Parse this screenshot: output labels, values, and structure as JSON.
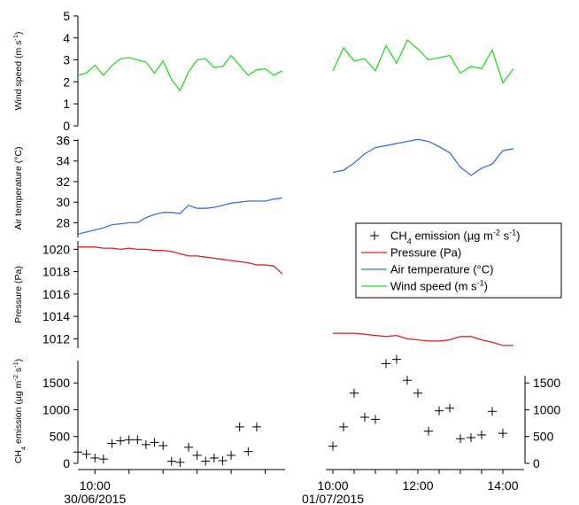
{
  "colors": {
    "wind": "#22dd22",
    "temperature": "#3a6fd8",
    "pressure": "#dd1f1f",
    "ch4": "#000000"
  },
  "chart_data": [
    {
      "type": "line",
      "panel": "wind",
      "ylabel": "Wind speed (m s-1)",
      "ylabel_parts": [
        "Wind speed (m s",
        "-1",
        ")"
      ],
      "ylim": [
        0,
        5
      ],
      "yticks": [
        0,
        1,
        2,
        3,
        4,
        5
      ],
      "series": [
        {
          "segment": "30/06/2015",
          "x": [
            "09:30",
            "09:45",
            "10:00",
            "10:15",
            "10:30",
            "10:45",
            "11:00",
            "11:15",
            "11:30",
            "11:45",
            "12:00",
            "12:15",
            "12:30",
            "12:45",
            "13:00",
            "13:15",
            "13:30",
            "13:45",
            "14:00",
            "14:15",
            "14:30",
            "14:45",
            "15:00",
            "15:15",
            "15:30"
          ],
          "values": [
            2.3,
            2.4,
            2.75,
            2.3,
            2.75,
            3.05,
            3.1,
            3.0,
            2.9,
            2.4,
            2.95,
            2.1,
            1.6,
            2.45,
            3.0,
            3.05,
            2.65,
            2.7,
            3.2,
            2.75,
            2.3,
            2.55,
            2.6,
            2.3,
            2.5
          ]
        },
        {
          "segment": "01/07/2015",
          "x": [
            "10:00",
            "10:15",
            "10:30",
            "10:45",
            "11:00",
            "11:15",
            "11:30",
            "11:45",
            "12:00",
            "12:15",
            "12:30",
            "12:45",
            "13:00",
            "13:15",
            "13:30",
            "13:45",
            "14:00",
            "14:15"
          ],
          "values": [
            2.5,
            3.55,
            2.95,
            3.05,
            2.5,
            3.65,
            2.85,
            3.9,
            3.5,
            3.0,
            3.1,
            3.2,
            2.4,
            2.7,
            2.6,
            3.45,
            1.95,
            2.6
          ]
        }
      ]
    },
    {
      "type": "line",
      "panel": "temperature",
      "ylabel": "Air temperature (°C)",
      "ylim": [
        26.4,
        36.3
      ],
      "yticks": [
        28,
        30,
        32,
        34,
        36
      ],
      "series": [
        {
          "segment": "30/06/2015",
          "x": [
            "09:30",
            "09:45",
            "10:00",
            "10:15",
            "10:30",
            "10:45",
            "11:00",
            "11:15",
            "11:30",
            "11:45",
            "12:00",
            "12:15",
            "12:30",
            "12:45",
            "13:00",
            "13:15",
            "13:30",
            "13:45",
            "14:00",
            "14:15",
            "14:30",
            "14:45",
            "15:00",
            "15:15",
            "15:30"
          ],
          "values": [
            26.9,
            27.1,
            27.3,
            27.5,
            27.8,
            27.9,
            28.0,
            28.0,
            28.5,
            28.8,
            29.0,
            29.0,
            28.9,
            29.7,
            29.4,
            29.4,
            29.5,
            29.7,
            29.9,
            30.0,
            30.1,
            30.1,
            30.1,
            30.3,
            30.4
          ]
        },
        {
          "segment": "01/07/2015",
          "x": [
            "10:00",
            "10:15",
            "10:30",
            "10:45",
            "11:00",
            "11:15",
            "11:30",
            "11:45",
            "12:00",
            "12:15",
            "12:30",
            "12:45",
            "13:00",
            "13:15",
            "13:30",
            "13:45",
            "14:00",
            "14:15"
          ],
          "values": [
            32.9,
            33.1,
            33.8,
            34.7,
            35.3,
            35.5,
            35.7,
            35.9,
            36.1,
            35.9,
            35.4,
            34.8,
            33.4,
            32.6,
            33.3,
            33.7,
            35.0,
            35.2
          ]
        }
      ]
    },
    {
      "type": "line",
      "panel": "pressure",
      "ylabel": "Pressure (Pa)",
      "ylim": [
        1011.0,
        1020.9
      ],
      "yticks": [
        1012,
        1014,
        1016,
        1018,
        1020
      ],
      "series": [
        {
          "segment": "30/06/2015",
          "x": [
            "09:30",
            "09:45",
            "10:00",
            "10:15",
            "10:30",
            "10:45",
            "11:00",
            "11:15",
            "11:30",
            "11:45",
            "12:00",
            "12:15",
            "12:30",
            "12:45",
            "13:00",
            "13:15",
            "13:30",
            "13:45",
            "14:00",
            "14:15",
            "14:30",
            "14:45",
            "15:00",
            "15:15",
            "15:30"
          ],
          "values": [
            1020.2,
            1020.2,
            1020.2,
            1020.1,
            1020.1,
            1020.0,
            1020.1,
            1020.0,
            1020.0,
            1019.9,
            1019.9,
            1019.8,
            1019.6,
            1019.4,
            1019.4,
            1019.3,
            1019.2,
            1019.1,
            1019.0,
            1018.9,
            1018.8,
            1018.6,
            1018.6,
            1018.5,
            1017.8
          ]
        },
        {
          "segment": "01/07/2015",
          "x": [
            "10:00",
            "10:15",
            "10:30",
            "10:45",
            "11:00",
            "11:15",
            "11:30",
            "11:45",
            "12:00",
            "12:15",
            "12:30",
            "12:45",
            "13:00",
            "13:15",
            "13:30",
            "13:45",
            "14:00",
            "14:15"
          ],
          "values": [
            1012.5,
            1012.5,
            1012.5,
            1012.4,
            1012.3,
            1012.2,
            1012.3,
            1012.0,
            1011.9,
            1011.8,
            1011.8,
            1011.9,
            1012.2,
            1012.2,
            1011.9,
            1011.7,
            1011.4,
            1011.4
          ]
        }
      ]
    },
    {
      "type": "scatter",
      "panel": "ch4",
      "ylabel": "CH4 emission (µg m-2 s-1)",
      "ylabel_parts": [
        "CH",
        "4",
        " emission (µg m",
        "-2",
        " s",
        "-1",
        ")"
      ],
      "ylim": [
        0,
        1950
      ],
      "yticks": [
        0,
        500,
        1000,
        1500
      ],
      "series": [
        {
          "segment": "30/06/2015",
          "x": [
            "09:30",
            "09:45",
            "10:00",
            "10:15",
            "10:30",
            "10:45",
            "11:00",
            "11:15",
            "11:30",
            "11:45",
            "12:00",
            "12:15",
            "12:30",
            "12:45",
            "13:00",
            "13:15",
            "13:30",
            "13:45",
            "14:00",
            "14:15",
            "14:30",
            "14:45",
            "15:00",
            "15:15",
            "15:30"
          ],
          "values": [
            210,
            170,
            100,
            80,
            370,
            420,
            440,
            440,
            350,
            390,
            330,
            40,
            20,
            300,
            150,
            40,
            100,
            50,
            150,
            680,
            220,
            680,
            null,
            null,
            null
          ]
        },
        {
          "segment": "01/07/2015",
          "x": [
            "10:00",
            "10:15",
            "10:30",
            "10:45",
            "11:00",
            "11:15",
            "11:30",
            "11:45",
            "12:00",
            "12:15",
            "12:30",
            "12:45",
            "13:00",
            "13:15",
            "13:30",
            "13:45",
            "14:00"
          ],
          "values": [
            320,
            680,
            1310,
            860,
            820,
            1860,
            1940,
            1550,
            1310,
            600,
            980,
            1030,
            460,
            480,
            530,
            970,
            560
          ]
        }
      ]
    }
  ],
  "x_axis": {
    "segments": [
      {
        "start": "09:30",
        "end": "15:35",
        "ticks": [
          "10:00",
          "11:00",
          "12:00",
          "13:00",
          "14:00",
          "15:00"
        ],
        "labels": [
          {
            "at": "10:00",
            "text": "10:00"
          }
        ],
        "date": "30/06/2015"
      },
      {
        "start": "09:50",
        "end": "14:30",
        "ticks": [
          "10:00",
          "10:30",
          "11:00",
          "11:30",
          "12:00",
          "12:30",
          "13:00",
          "13:30",
          "14:00"
        ],
        "labels": [
          {
            "at": "10:00",
            "text": "10:00"
          },
          {
            "at": "12:00",
            "text": "12:00"
          },
          {
            "at": "14:00",
            "text": "14:00"
          }
        ],
        "date": "01/07/2015"
      }
    ]
  },
  "ch4_right_axis": {
    "ticks": [
      0,
      500,
      1000,
      1500
    ]
  },
  "legend": {
    "placement": "right",
    "entries": [
      {
        "series": "ch4",
        "marker": "cross",
        "parts": [
          "CH",
          "4",
          " emission (µg m",
          "-2",
          " s",
          "-1",
          ")"
        ]
      },
      {
        "series": "pressure",
        "marker": "line",
        "parts": [
          "Pressure (Pa)"
        ]
      },
      {
        "series": "temperature",
        "marker": "line",
        "parts": [
          "Air temperature (°C)"
        ]
      },
      {
        "series": "wind",
        "marker": "line",
        "parts": [
          "Wind speed (m s",
          "-1",
          ")"
        ]
      }
    ]
  }
}
